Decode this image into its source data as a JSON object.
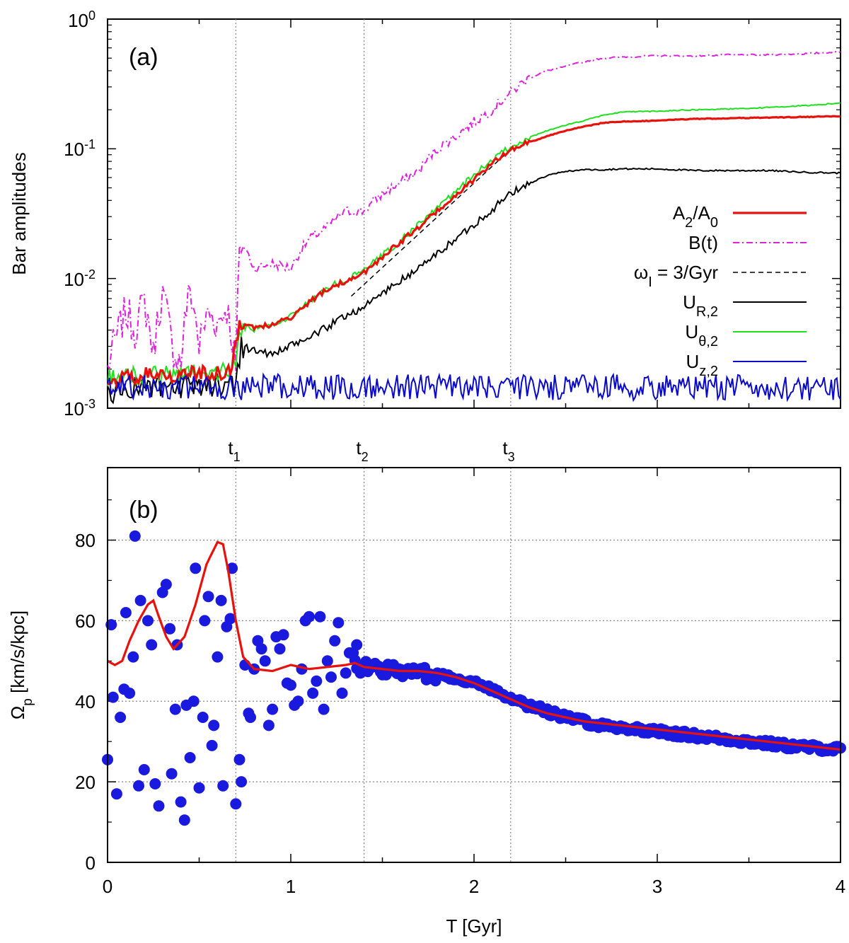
{
  "chart_data": [
    {
      "type": "line",
      "panel_label": "(a)",
      "ylabel": "Bar amplitudes",
      "xlabel": "",
      "yscale": "log",
      "ylim": [
        0.001,
        1
      ],
      "xlim": [
        0,
        4
      ],
      "y_tick_labels": [
        {
          "base": "10",
          "exp": "0"
        },
        {
          "base": "10",
          "exp": "-1"
        },
        {
          "base": "10",
          "exp": "-2"
        },
        {
          "base": "10",
          "exp": "-3"
        }
      ],
      "event_markers": [
        {
          "base": "t",
          "sub": "1",
          "x": 0.7
        },
        {
          "base": "t",
          "sub": "2",
          "x": 1.4
        },
        {
          "base": "t",
          "sub": "3",
          "x": 2.2
        }
      ],
      "legend_position": "right-middle",
      "series": [
        {
          "key": "A2A0",
          "legend_html": "A<tspan baseline-shift=\"sub\" font-size=\"20\">2</tspan>/A<tspan baseline-shift=\"sub\" font-size=\"20\">0</tspan>",
          "color": "#e8120c",
          "style": "solid-thick",
          "x": [
            0,
            0.2,
            0.4,
            0.6,
            0.68,
            0.72,
            0.8,
            0.9,
            1.0,
            1.1,
            1.2,
            1.3,
            1.4,
            1.5,
            1.6,
            1.7,
            1.8,
            1.9,
            2.0,
            2.1,
            2.2,
            2.3,
            2.4,
            2.5,
            2.6,
            2.7,
            2.8,
            3.0,
            3.2,
            3.4,
            3.6,
            3.8,
            4.0
          ],
          "y": [
            0.0016,
            0.0018,
            0.0018,
            0.0019,
            0.0019,
            0.0045,
            0.0042,
            0.0044,
            0.005,
            0.0065,
            0.0083,
            0.0095,
            0.011,
            0.0145,
            0.019,
            0.025,
            0.033,
            0.044,
            0.058,
            0.077,
            0.097,
            0.112,
            0.125,
            0.138,
            0.148,
            0.158,
            0.162,
            0.165,
            0.17,
            0.172,
            0.174,
            0.176,
            0.178
          ]
        },
        {
          "key": "Bt",
          "legend_html": "B(t)",
          "color": "#dd22dd",
          "style": "dash-dot",
          "x": [
            0,
            0.05,
            0.1,
            0.15,
            0.2,
            0.25,
            0.3,
            0.35,
            0.4,
            0.45,
            0.5,
            0.55,
            0.6,
            0.65,
            0.7,
            0.73,
            0.8,
            0.9,
            1.0,
            1.1,
            1.2,
            1.3,
            1.4,
            1.5,
            1.6,
            1.7,
            1.8,
            1.9,
            2.0,
            2.1,
            2.2,
            2.3,
            2.4,
            2.5,
            2.6,
            2.7,
            2.8,
            3.0,
            3.2,
            3.4,
            3.6,
            3.8,
            4.0
          ],
          "y": [
            0.002,
            0.0035,
            0.0055,
            0.004,
            0.0065,
            0.0025,
            0.0075,
            0.003,
            0.0022,
            0.008,
            0.003,
            0.0055,
            0.0045,
            0.006,
            0.0018,
            0.019,
            0.012,
            0.013,
            0.012,
            0.02,
            0.025,
            0.033,
            0.033,
            0.045,
            0.055,
            0.068,
            0.1,
            0.125,
            0.16,
            0.2,
            0.27,
            0.35,
            0.4,
            0.43,
            0.47,
            0.5,
            0.51,
            0.52,
            0.52,
            0.53,
            0.53,
            0.54,
            0.56
          ]
        },
        {
          "key": "omega",
          "legend_html": "ω<tspan baseline-shift=\"sub\" font-size=\"20\">I</tspan> = 3/Gyr",
          "color": "#000000",
          "style": "dashed",
          "x": [
            1.33,
            2.2
          ],
          "y": [
            0.0073,
            0.099
          ]
        },
        {
          "key": "UR2",
          "legend_html": "U<tspan baseline-shift=\"sub\" font-size=\"20\">R,2</tspan>",
          "color": "#000000",
          "style": "solid",
          "x": [
            0,
            0.1,
            0.2,
            0.3,
            0.4,
            0.5,
            0.6,
            0.7,
            0.73,
            0.8,
            0.9,
            1.0,
            1.1,
            1.2,
            1.3,
            1.4,
            1.5,
            1.6,
            1.7,
            1.8,
            1.9,
            2.0,
            2.1,
            2.2,
            2.3,
            2.4,
            2.5,
            2.6,
            2.7,
            2.8,
            2.9,
            3.0,
            3.2,
            3.4,
            3.6,
            3.8,
            4.0
          ],
          "y": [
            0.0013,
            0.0014,
            0.0015,
            0.0014,
            0.0014,
            0.0015,
            0.0015,
            0.0016,
            0.003,
            0.0028,
            0.0026,
            0.003,
            0.0035,
            0.0042,
            0.0052,
            0.006,
            0.0077,
            0.0096,
            0.012,
            0.0155,
            0.02,
            0.026,
            0.034,
            0.045,
            0.054,
            0.062,
            0.067,
            0.069,
            0.069,
            0.07,
            0.07,
            0.07,
            0.068,
            0.068,
            0.068,
            0.066,
            0.065
          ]
        },
        {
          "key": "Ut2",
          "legend_html": "U<tspan baseline-shift=\"sub\" font-size=\"20\">θ,2</tspan>",
          "color": "#1ee01e",
          "style": "solid",
          "x": [
            0,
            0.2,
            0.4,
            0.6,
            0.7,
            0.72,
            0.8,
            0.9,
            1.0,
            1.1,
            1.2,
            1.3,
            1.4,
            1.5,
            1.6,
            1.7,
            1.8,
            1.9,
            2.0,
            2.1,
            2.2,
            2.3,
            2.4,
            2.5,
            2.6,
            2.7,
            2.8,
            3.0,
            3.2,
            3.4,
            3.6,
            3.8,
            4.0
          ],
          "y": [
            0.0017,
            0.0018,
            0.0019,
            0.0019,
            0.002,
            0.0042,
            0.0041,
            0.0043,
            0.0051,
            0.0066,
            0.0085,
            0.0097,
            0.0115,
            0.015,
            0.0195,
            0.026,
            0.035,
            0.046,
            0.062,
            0.082,
            0.104,
            0.122,
            0.138,
            0.152,
            0.165,
            0.18,
            0.192,
            0.195,
            0.2,
            0.203,
            0.208,
            0.215,
            0.225
          ]
        },
        {
          "key": "Uz2",
          "legend_html": "U<tspan baseline-shift=\"sub\" font-size=\"20\">z,2</tspan>",
          "color": "#0a0acd",
          "style": "solid-noisy",
          "base": 0.00145
        }
      ]
    },
    {
      "type": "scatter",
      "panel_label": "(b)",
      "ylabel_html": "Ω<tspan baseline-shift=\"sub\" font-size=\"19\">p</tspan> [km/s/kpc]",
      "xlabel": "T [Gyr]",
      "xlim": [
        0,
        4
      ],
      "ylim": [
        0,
        98
      ],
      "x_ticks": [
        "0",
        "1",
        "2",
        "3",
        "4"
      ],
      "y_ticks": [
        "0",
        "20",
        "40",
        "60",
        "80"
      ],
      "grid": true,
      "series": [
        {
          "key": "points",
          "color": "#1a1adf",
          "style": "markers",
          "x": [
            0,
            0.02,
            0.03,
            0.05,
            0.07,
            0.09,
            0.1,
            0.12,
            0.14,
            0.15,
            0.17,
            0.18,
            0.2,
            0.22,
            0.24,
            0.26,
            0.28,
            0.3,
            0.32,
            0.34,
            0.35,
            0.37,
            0.38,
            0.4,
            0.42,
            0.43,
            0.45,
            0.47,
            0.48,
            0.5,
            0.52,
            0.53,
            0.55,
            0.57,
            0.58,
            0.6,
            0.62,
            0.63,
            0.65,
            0.67,
            0.68,
            0.7,
            0.72,
            0.73,
            0.75,
            0.77,
            0.78,
            0.8,
            0.82,
            0.84,
            0.86,
            0.88,
            0.9,
            0.92,
            0.94,
            0.96,
            0.98,
            1.0,
            1.02,
            1.04,
            1.06,
            1.08,
            1.1,
            1.12,
            1.14,
            1.16,
            1.18,
            1.2,
            1.22,
            1.24,
            1.26,
            1.28,
            1.3,
            1.32,
            1.34,
            1.36,
            1.38
          ],
          "y": [
            25.5,
            59,
            41,
            17,
            36,
            43,
            62,
            42,
            51,
            81,
            19,
            65,
            23,
            60,
            54,
            19.5,
            14,
            67,
            69,
            58,
            22,
            38,
            54,
            15,
            10.5,
            39,
            26,
            40,
            73,
            18.5,
            36,
            60,
            66,
            29,
            34,
            51,
            65,
            19,
            58.5,
            60.5,
            73,
            14.5,
            25.5,
            20,
            49,
            37,
            36,
            48,
            55,
            53,
            50,
            34,
            38,
            56,
            53,
            56.5,
            44.5,
            44,
            39,
            40,
            48,
            60,
            61,
            42,
            45,
            61,
            38,
            50,
            46,
            55,
            59.5,
            42,
            47,
            52,
            52,
            54,
            47
          ]
        },
        {
          "key": "dense",
          "color": "#1a1adf",
          "style": "dense-band",
          "x": [
            1.35,
            1.5,
            1.7,
            1.9,
            2.1,
            2.3,
            2.5,
            2.7,
            2.9,
            3.1,
            3.3,
            3.5,
            3.7,
            4.0
          ],
          "y": [
            49,
            48,
            47,
            46,
            43,
            39,
            36,
            34,
            33,
            32,
            31,
            30,
            29,
            28
          ]
        },
        {
          "key": "smooth",
          "color": "#e8120c",
          "style": "solid-thick",
          "x": [
            0,
            0.04,
            0.08,
            0.12,
            0.17,
            0.22,
            0.25,
            0.28,
            0.32,
            0.36,
            0.42,
            0.48,
            0.54,
            0.6,
            0.63,
            0.66,
            0.7,
            0.74,
            0.8,
            0.9,
            1.0,
            1.1,
            1.2,
            1.3,
            1.35,
            1.4,
            1.5,
            1.6,
            1.7,
            1.8,
            1.9,
            2.0,
            2.1,
            2.2,
            2.3,
            2.4,
            2.5,
            2.6,
            2.7,
            2.8,
            2.9,
            3.0,
            3.2,
            3.4,
            3.6,
            3.8,
            4.0
          ],
          "y": [
            50,
            49,
            50,
            55,
            60,
            64,
            65,
            61,
            56,
            53,
            56,
            64,
            74,
            79.5,
            79,
            72,
            60,
            51,
            48,
            47.5,
            49,
            48,
            48.5,
            49,
            49.5,
            48.5,
            48,
            47.5,
            47.5,
            47,
            46,
            44.5,
            42.5,
            40.5,
            38.5,
            37,
            36,
            35,
            34.5,
            34,
            33.5,
            33,
            32,
            31,
            30,
            29,
            28
          ]
        }
      ]
    }
  ]
}
